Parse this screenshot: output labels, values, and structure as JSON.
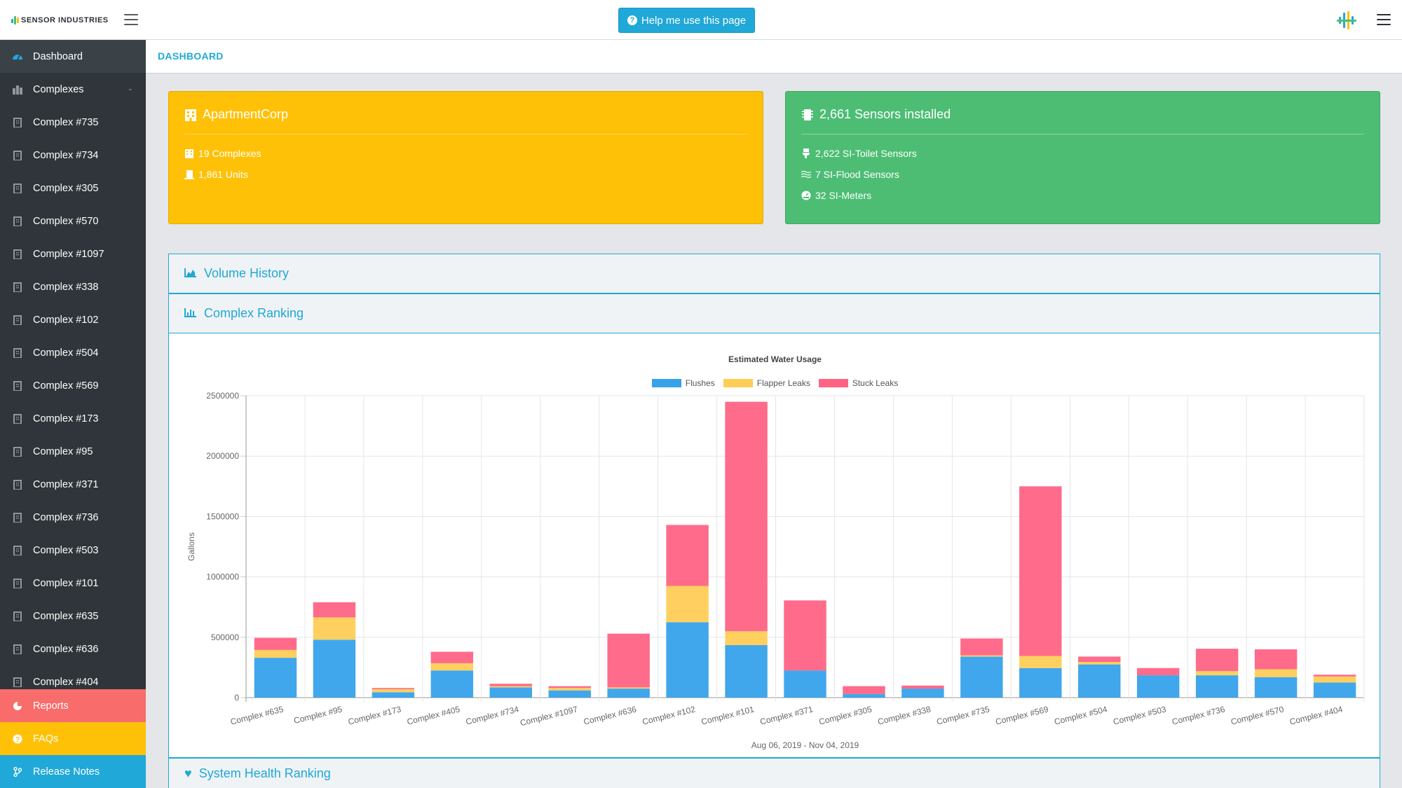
{
  "topbar": {
    "logo_text": "SENSOR INDUSTRIES",
    "help_label": "Help me use this page"
  },
  "sidebar": {
    "items": [
      {
        "label": "Dashboard",
        "icon": "dashboard-icon"
      },
      {
        "label": "Complexes",
        "icon": "complexes-icon"
      },
      {
        "label": "Complex #735",
        "icon": "building-icon"
      },
      {
        "label": "Complex #734",
        "icon": "building-icon"
      },
      {
        "label": "Complex #305",
        "icon": "building-icon"
      },
      {
        "label": "Complex #570",
        "icon": "building-icon"
      },
      {
        "label": "Complex #1097",
        "icon": "building-icon"
      },
      {
        "label": "Complex #338",
        "icon": "building-icon"
      },
      {
        "label": "Complex #102",
        "icon": "building-icon"
      },
      {
        "label": "Complex #504",
        "icon": "building-icon"
      },
      {
        "label": "Complex #569",
        "icon": "building-icon"
      },
      {
        "label": "Complex #173",
        "icon": "building-icon"
      },
      {
        "label": "Complex #95",
        "icon": "building-icon"
      },
      {
        "label": "Complex #371",
        "icon": "building-icon"
      },
      {
        "label": "Complex #736",
        "icon": "building-icon"
      },
      {
        "label": "Complex #503",
        "icon": "building-icon"
      },
      {
        "label": "Complex #101",
        "icon": "building-icon"
      },
      {
        "label": "Complex #635",
        "icon": "building-icon"
      },
      {
        "label": "Complex #636",
        "icon": "building-icon"
      },
      {
        "label": "Complex #404",
        "icon": "building-icon"
      }
    ],
    "reports": "Reports",
    "faqs": "FAQs",
    "release_notes": "Release Notes"
  },
  "breadcrumb": "DASHBOARD",
  "org_card": {
    "title": "ApartmentCorp",
    "complexes": "19 Complexes",
    "units": "1,861 Units",
    "color": "#ffc107"
  },
  "sensor_card": {
    "title": "2,661 Sensors installed",
    "toilet": "2,622 SI-Toilet Sensors",
    "flood": "7 SI-Flood Sensors",
    "meters": "32 SI-Meters",
    "color": "#4dbd74"
  },
  "panels": {
    "volume_history": "Volume History",
    "complex_ranking": "Complex Ranking",
    "system_health": "System Health Ranking"
  },
  "chart_data": {
    "type": "bar",
    "stacked": true,
    "title": "Estimated Water Usage",
    "xlabel": "Aug 06, 2019 - Nov 04, 2019",
    "ylabel": "Gallons",
    "ylim": [
      0,
      2500000
    ],
    "yticks": [
      "0",
      "500000",
      "1000000",
      "1500000",
      "2000000",
      "2500000"
    ],
    "legend_position": "top",
    "grid": true,
    "categories": [
      "Complex #635",
      "Complex #95",
      "Complex #173",
      "Complex #405",
      "Complex #734",
      "Complex #1097",
      "Complex #636",
      "Complex #102",
      "Complex #101",
      "Complex #371",
      "Complex #305",
      "Complex #338",
      "Complex #735",
      "Complex #569",
      "Complex #504",
      "Complex #503",
      "Complex #736",
      "Complex #570",
      "Complex #404"
    ],
    "series": [
      {
        "name": "Flushes",
        "color": "#36a2eb",
        "values": [
          330000,
          480000,
          45000,
          225000,
          85000,
          60000,
          75000,
          625000,
          435000,
          225000,
          30000,
          75000,
          340000,
          245000,
          275000,
          185000,
          185000,
          170000,
          125000
        ]
      },
      {
        "name": "Flapper Leaks",
        "color": "#ffcd56",
        "values": [
          65000,
          185000,
          25000,
          60000,
          10000,
          20000,
          10000,
          300000,
          115000,
          0,
          0,
          0,
          10000,
          100000,
          20000,
          0,
          35000,
          65000,
          50000
        ]
      },
      {
        "name": "Stuck Leaks",
        "color": "#ff6384",
        "values": [
          100000,
          125000,
          10000,
          95000,
          20000,
          15000,
          445000,
          505000,
          1900000,
          580000,
          65000,
          25000,
          140000,
          1405000,
          45000,
          60000,
          185000,
          165000,
          15000
        ]
      }
    ]
  }
}
